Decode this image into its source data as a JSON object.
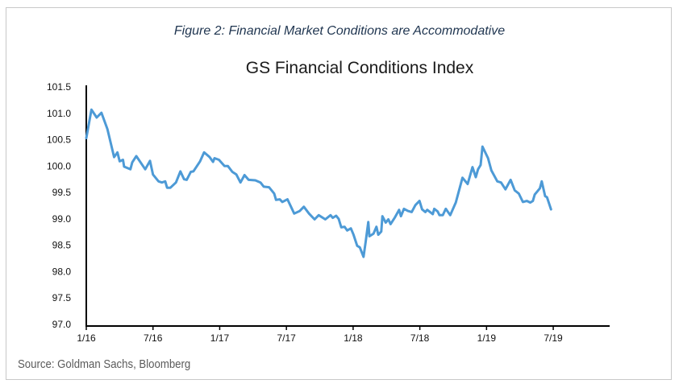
{
  "caption": "Figure 2:  Financial Market Conditions are Accommodative",
  "source": "Source: Goldman Sachs, Bloomberg",
  "chart_data": {
    "type": "line",
    "title": "GS Financial Conditions Index",
    "xlabel": "",
    "ylabel": "",
    "ylim": [
      97.0,
      101.5
    ],
    "xlim": [
      "2016-01-01",
      "2019-12-01"
    ],
    "y_ticks": [
      "97.0",
      "97.5",
      "98.0",
      "98.5",
      "99.0",
      "99.5",
      "100.0",
      "100.5",
      "101.0",
      "101.5"
    ],
    "x_ticks": [
      {
        "label": "1/16",
        "date": "2016-01-01"
      },
      {
        "label": "7/16",
        "date": "2016-07-01"
      },
      {
        "label": "1/17",
        "date": "2017-01-01"
      },
      {
        "label": "7/17",
        "date": "2017-07-01"
      },
      {
        "label": "1/18",
        "date": "2018-01-01"
      },
      {
        "label": "7/18",
        "date": "2018-07-01"
      },
      {
        "label": "1/19",
        "date": "2019-01-01"
      },
      {
        "label": "7/19",
        "date": "2019-07-01"
      }
    ],
    "grid": false,
    "line_color": "#4d9ad6",
    "series": [
      {
        "points": [
          [
            "2016-01-01",
            100.53
          ],
          [
            "2016-01-15",
            101.07
          ],
          [
            "2016-01-29",
            100.92
          ],
          [
            "2016-02-12",
            101.01
          ],
          [
            "2016-02-28",
            100.7
          ],
          [
            "2016-03-16",
            100.17
          ],
          [
            "2016-03-25",
            100.26
          ],
          [
            "2016-04-01",
            100.09
          ],
          [
            "2016-04-10",
            100.12
          ],
          [
            "2016-04-13",
            99.99
          ],
          [
            "2016-04-30",
            99.94
          ],
          [
            "2016-05-05",
            100.07
          ],
          [
            "2016-05-16",
            100.19
          ],
          [
            "2016-06-10",
            99.94
          ],
          [
            "2016-06-23",
            100.1
          ],
          [
            "2016-07-01",
            99.84
          ],
          [
            "2016-07-16",
            99.71
          ],
          [
            "2016-07-25",
            99.69
          ],
          [
            "2016-08-04",
            99.71
          ],
          [
            "2016-08-09",
            99.59
          ],
          [
            "2016-08-18",
            99.59
          ],
          [
            "2016-09-03",
            99.69
          ],
          [
            "2016-09-15",
            99.9
          ],
          [
            "2016-09-25",
            99.75
          ],
          [
            "2016-10-02",
            99.74
          ],
          [
            "2016-10-13",
            99.89
          ],
          [
            "2016-10-20",
            99.9
          ],
          [
            "2016-11-08",
            100.09
          ],
          [
            "2016-11-19",
            100.26
          ],
          [
            "2016-12-04",
            100.17
          ],
          [
            "2016-12-13",
            100.08
          ],
          [
            "2016-12-17",
            100.15
          ],
          [
            "2016-12-29",
            100.12
          ],
          [
            "2017-01-14",
            100.0
          ],
          [
            "2017-01-23",
            100.0
          ],
          [
            "2017-02-05",
            99.89
          ],
          [
            "2017-02-16",
            99.84
          ],
          [
            "2017-02-27",
            99.69
          ],
          [
            "2017-03-08",
            99.83
          ],
          [
            "2017-03-19",
            99.74
          ],
          [
            "2017-04-07",
            99.73
          ],
          [
            "2017-04-21",
            99.69
          ],
          [
            "2017-04-30",
            99.61
          ],
          [
            "2017-05-14",
            99.6
          ],
          [
            "2017-05-28",
            99.48
          ],
          [
            "2017-06-03",
            99.36
          ],
          [
            "2017-06-13",
            99.37
          ],
          [
            "2017-06-20",
            99.32
          ],
          [
            "2017-07-04",
            99.37
          ],
          [
            "2017-07-22",
            99.1
          ],
          [
            "2017-08-07",
            99.15
          ],
          [
            "2017-08-18",
            99.23
          ],
          [
            "2017-09-02",
            99.1
          ],
          [
            "2017-09-17",
            98.99
          ],
          [
            "2017-09-28",
            99.07
          ],
          [
            "2017-10-16",
            98.99
          ],
          [
            "2017-10-30",
            99.07
          ],
          [
            "2017-11-06",
            99.02
          ],
          [
            "2017-11-15",
            99.06
          ],
          [
            "2017-11-22",
            99.0
          ],
          [
            "2017-11-29",
            98.84
          ],
          [
            "2017-12-08",
            98.85
          ],
          [
            "2017-12-15",
            98.78
          ],
          [
            "2017-12-25",
            98.82
          ],
          [
            "2018-01-02",
            98.7
          ],
          [
            "2018-01-12",
            98.49
          ],
          [
            "2018-01-19",
            98.46
          ],
          [
            "2018-01-29",
            98.28
          ],
          [
            "2018-02-05",
            98.57
          ],
          [
            "2018-02-12",
            98.94
          ],
          [
            "2018-02-15",
            98.67
          ],
          [
            "2018-02-26",
            98.72
          ],
          [
            "2018-03-04",
            98.85
          ],
          [
            "2018-03-09",
            98.7
          ],
          [
            "2018-03-17",
            98.76
          ],
          [
            "2018-03-20",
            99.05
          ],
          [
            "2018-03-29",
            98.93
          ],
          [
            "2018-04-06",
            98.99
          ],
          [
            "2018-04-12",
            98.9
          ],
          [
            "2018-04-24",
            99.03
          ],
          [
            "2018-05-05",
            99.17
          ],
          [
            "2018-05-10",
            99.05
          ],
          [
            "2018-05-18",
            99.19
          ],
          [
            "2018-05-29",
            99.15
          ],
          [
            "2018-06-09",
            99.13
          ],
          [
            "2018-06-19",
            99.26
          ],
          [
            "2018-06-30",
            99.34
          ],
          [
            "2018-07-07",
            99.18
          ],
          [
            "2018-07-16",
            99.13
          ],
          [
            "2018-07-21",
            99.17
          ],
          [
            "2018-08-06",
            99.09
          ],
          [
            "2018-08-10",
            99.19
          ],
          [
            "2018-08-19",
            99.14
          ],
          [
            "2018-08-24",
            99.07
          ],
          [
            "2018-09-03",
            99.07
          ],
          [
            "2018-09-11",
            99.19
          ],
          [
            "2018-09-23",
            99.07
          ],
          [
            "2018-10-08",
            99.31
          ],
          [
            "2018-10-26",
            99.78
          ],
          [
            "2018-11-10",
            99.66
          ],
          [
            "2018-11-23",
            99.98
          ],
          [
            "2018-12-02",
            99.79
          ],
          [
            "2018-12-08",
            99.94
          ],
          [
            "2018-12-15",
            100.02
          ],
          [
            "2018-12-20",
            100.37
          ],
          [
            "2019-01-05",
            100.15
          ],
          [
            "2019-01-14",
            99.92
          ],
          [
            "2019-01-30",
            99.71
          ],
          [
            "2019-02-10",
            99.69
          ],
          [
            "2019-02-22",
            99.56
          ],
          [
            "2019-03-06",
            99.74
          ],
          [
            "2019-03-17",
            99.54
          ],
          [
            "2019-03-28",
            99.48
          ],
          [
            "2019-04-09",
            99.32
          ],
          [
            "2019-04-20",
            99.34
          ],
          [
            "2019-04-29",
            99.31
          ],
          [
            "2019-05-06",
            99.34
          ],
          [
            "2019-05-11",
            99.46
          ],
          [
            "2019-05-25",
            99.58
          ],
          [
            "2019-05-30",
            99.71
          ],
          [
            "2019-06-09",
            99.43
          ],
          [
            "2019-06-14",
            99.41
          ],
          [
            "2019-06-25",
            99.18
          ]
        ]
      }
    ]
  }
}
